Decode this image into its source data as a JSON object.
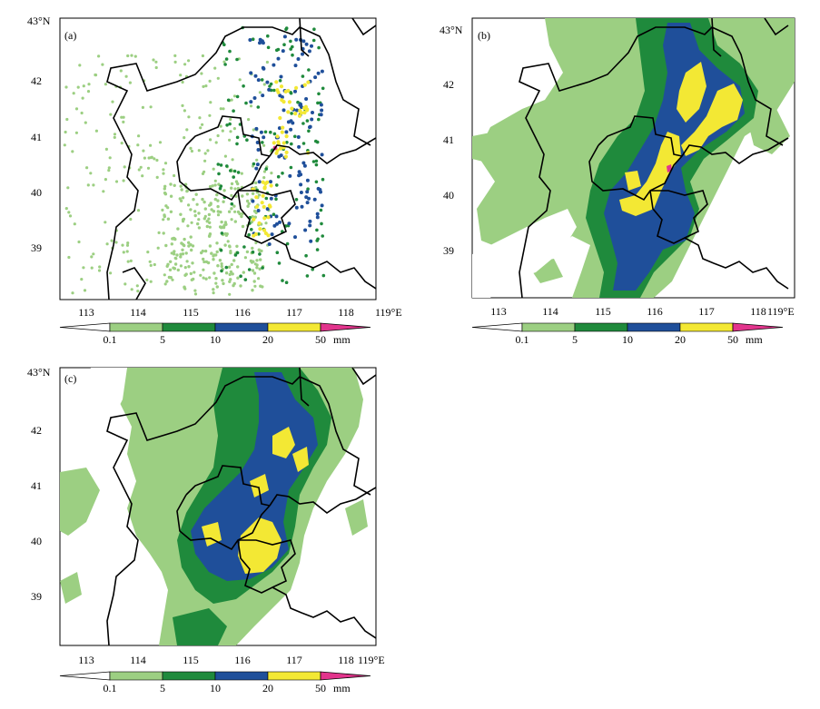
{
  "panels": [
    {
      "id": "a",
      "label": "(a)",
      "kind": "station"
    },
    {
      "id": "b",
      "label": "(b)",
      "kind": "field"
    },
    {
      "id": "c",
      "label": "(c)",
      "kind": "field"
    }
  ],
  "axes": {
    "lat_top_label": "43°N",
    "lat_ticks": [
      "42",
      "41",
      "40",
      "39"
    ],
    "lon_ticks": [
      "113",
      "114",
      "115",
      "116",
      "117",
      "118"
    ],
    "lon_right_label": "119°E"
  },
  "colorbar": {
    "labels": [
      "0.1",
      "5",
      "10",
      "20",
      "50"
    ],
    "unit": "mm",
    "colors": [
      "#ffffff",
      "#9ccf82",
      "#1f8a3c",
      "#1f4f9a",
      "#f3e834",
      "#e2348c"
    ]
  }
}
